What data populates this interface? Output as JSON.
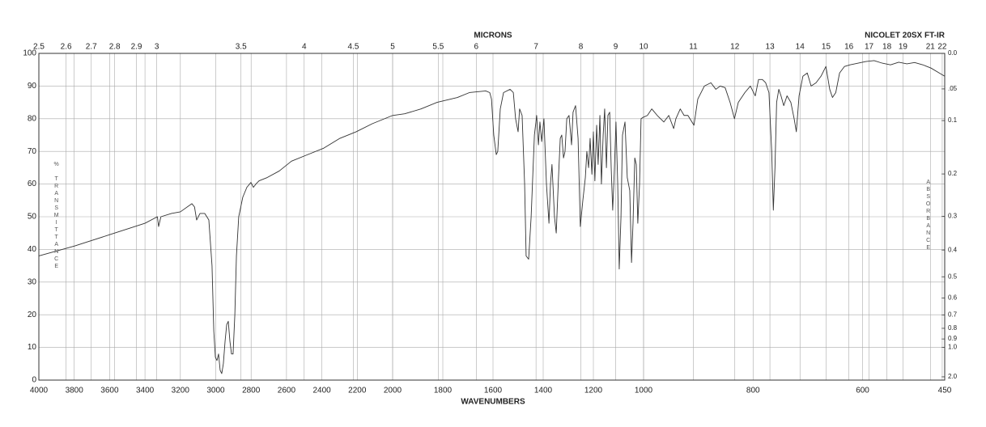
{
  "chart_data": {
    "type": "line",
    "title": "NICOLET 20SX FT-IR",
    "x_label": "WAVENUMBERS",
    "x2_label": "MICRONS",
    "y_label": "% TRANSMITTANCE",
    "y2_label": "ABSORBANCE",
    "color": "#333333",
    "grid": true,
    "xlim": [
      4000,
      450
    ],
    "xticks": [
      4000,
      3800,
      3600,
      3400,
      3200,
      3000,
      2800,
      2600,
      2400,
      2200,
      2000,
      1800,
      1600,
      1400,
      1200,
      1000,
      800,
      600,
      450
    ],
    "x2ticks": [
      2.5,
      2.6,
      2.7,
      2.8,
      2.9,
      3,
      3.5,
      4,
      4.5,
      5,
      5.5,
      6,
      7,
      8,
      9,
      10,
      11,
      12,
      13,
      14,
      15,
      16,
      17,
      18,
      19,
      21,
      22
    ],
    "ylim": [
      0,
      100
    ],
    "yticks": [
      0,
      10,
      20,
      30,
      40,
      50,
      60,
      70,
      80,
      90,
      100
    ],
    "y2ticks": [
      {
        "value": 0,
        "label": "0.0"
      },
      {
        "value": 0.05,
        "label": ".05"
      },
      0.1,
      0.2,
      0.3,
      0.4,
      0.5,
      0.6,
      0.7,
      0.8,
      0.9,
      {
        "value": 1,
        "label": "1.0"
      },
      {
        "value": 2,
        "label": "2.0"
      }
    ],
    "x": [
      4000,
      3800,
      3600,
      3400,
      3330,
      3323,
      3310,
      3250,
      3200,
      3135,
      3120,
      3108,
      3089,
      3062,
      3039,
      3021,
      3011,
      3002,
      2993,
      2984,
      2975,
      2966,
      2957,
      2947,
      2938,
      2929,
      2920,
      2911,
      2902,
      2892,
      2883,
      2870,
      2847,
      2824,
      2801,
      2787,
      2773,
      2755,
      2709,
      2641,
      2572,
      2481,
      2389,
      2298,
      2206,
      2114,
      2000,
      1952,
      1887,
      1823,
      1742,
      1694,
      1629,
      1613,
      1606,
      1597,
      1587,
      1581,
      1571,
      1558,
      1532,
      1519,
      1510,
      1500,
      1494,
      1484,
      1474,
      1468,
      1458,
      1448,
      1435,
      1426,
      1419,
      1413,
      1406,
      1397,
      1387,
      1377,
      1371,
      1365,
      1355,
      1348,
      1339,
      1332,
      1326,
      1319,
      1313,
      1306,
      1297,
      1287,
      1281,
      1271,
      1261,
      1252,
      1242,
      1232,
      1226,
      1219,
      1213,
      1206,
      1200,
      1194,
      1187,
      1181,
      1174,
      1168,
      1161,
      1155,
      1148,
      1142,
      1135,
      1129,
      1123,
      1116,
      1110,
      1103,
      1097,
      1090,
      1084,
      1074,
      1065,
      1055,
      1048,
      1042,
      1035,
      1029,
      1023,
      1016,
      1010,
      1000,
      993,
      985,
      975,
      963,
      954,
      945,
      941,
      933,
      926,
      919,
      908,
      901,
      889,
      877,
      868,
      860,
      851,
      842,
      834,
      827,
      815,
      805,
      796,
      790,
      783,
      777,
      771,
      766,
      763,
      760,
      757,
      753,
      749,
      744,
      738,
      731,
      725,
      721,
      716,
      709,
      701,
      694,
      685,
      676,
      667,
      660,
      655,
      649,
      642,
      633,
      623,
      608,
      594,
      579,
      564,
      549,
      534,
      519,
      505,
      490,
      475,
      460,
      450
    ],
    "values": [
      38,
      41,
      44.5,
      48,
      50,
      47,
      50,
      51,
      51.5,
      54,
      53,
      49,
      51,
      51,
      49,
      35,
      15,
      7,
      6,
      8,
      3,
      2,
      5,
      12,
      17,
      18,
      12,
      8,
      8,
      20,
      38,
      50,
      56,
      59,
      60.5,
      59,
      60,
      61,
      62,
      64,
      67,
      69,
      71,
      74,
      76,
      78.5,
      81,
      81.5,
      83,
      85,
      86.5,
      88,
      88.5,
      88,
      86,
      75,
      69,
      70,
      83,
      88,
      89,
      88,
      80,
      76,
      83,
      81,
      60,
      38,
      37,
      50,
      75,
      81,
      72,
      79,
      73,
      80,
      60,
      48,
      60,
      66,
      50,
      45,
      62,
      74,
      75,
      68,
      70,
      80,
      81,
      72,
      82,
      84,
      74,
      47,
      55,
      62,
      70,
      65,
      74,
      63,
      76,
      61,
      78,
      66,
      81,
      60,
      75,
      83,
      65,
      81,
      82,
      65,
      52,
      65,
      79,
      60,
      34,
      50,
      75,
      79,
      62,
      58,
      36,
      48,
      68,
      66,
      48,
      60,
      80,
      80.5,
      81,
      83,
      81,
      79,
      81,
      77,
      80,
      83,
      81,
      81,
      78,
      86,
      90,
      91,
      89,
      90,
      89.5,
      85,
      80,
      85,
      88,
      90,
      87,
      92,
      92,
      91,
      88,
      70,
      52,
      65,
      85,
      89,
      87,
      84,
      87,
      85,
      80,
      76,
      87,
      93,
      94,
      90,
      91,
      93,
      96,
      89,
      86.5,
      88,
      94,
      96,
      96.5,
      97,
      97.5,
      97.8,
      97,
      96.5,
      97.3,
      96.8,
      97.2,
      96.5,
      95.5,
      94,
      93
    ]
  }
}
